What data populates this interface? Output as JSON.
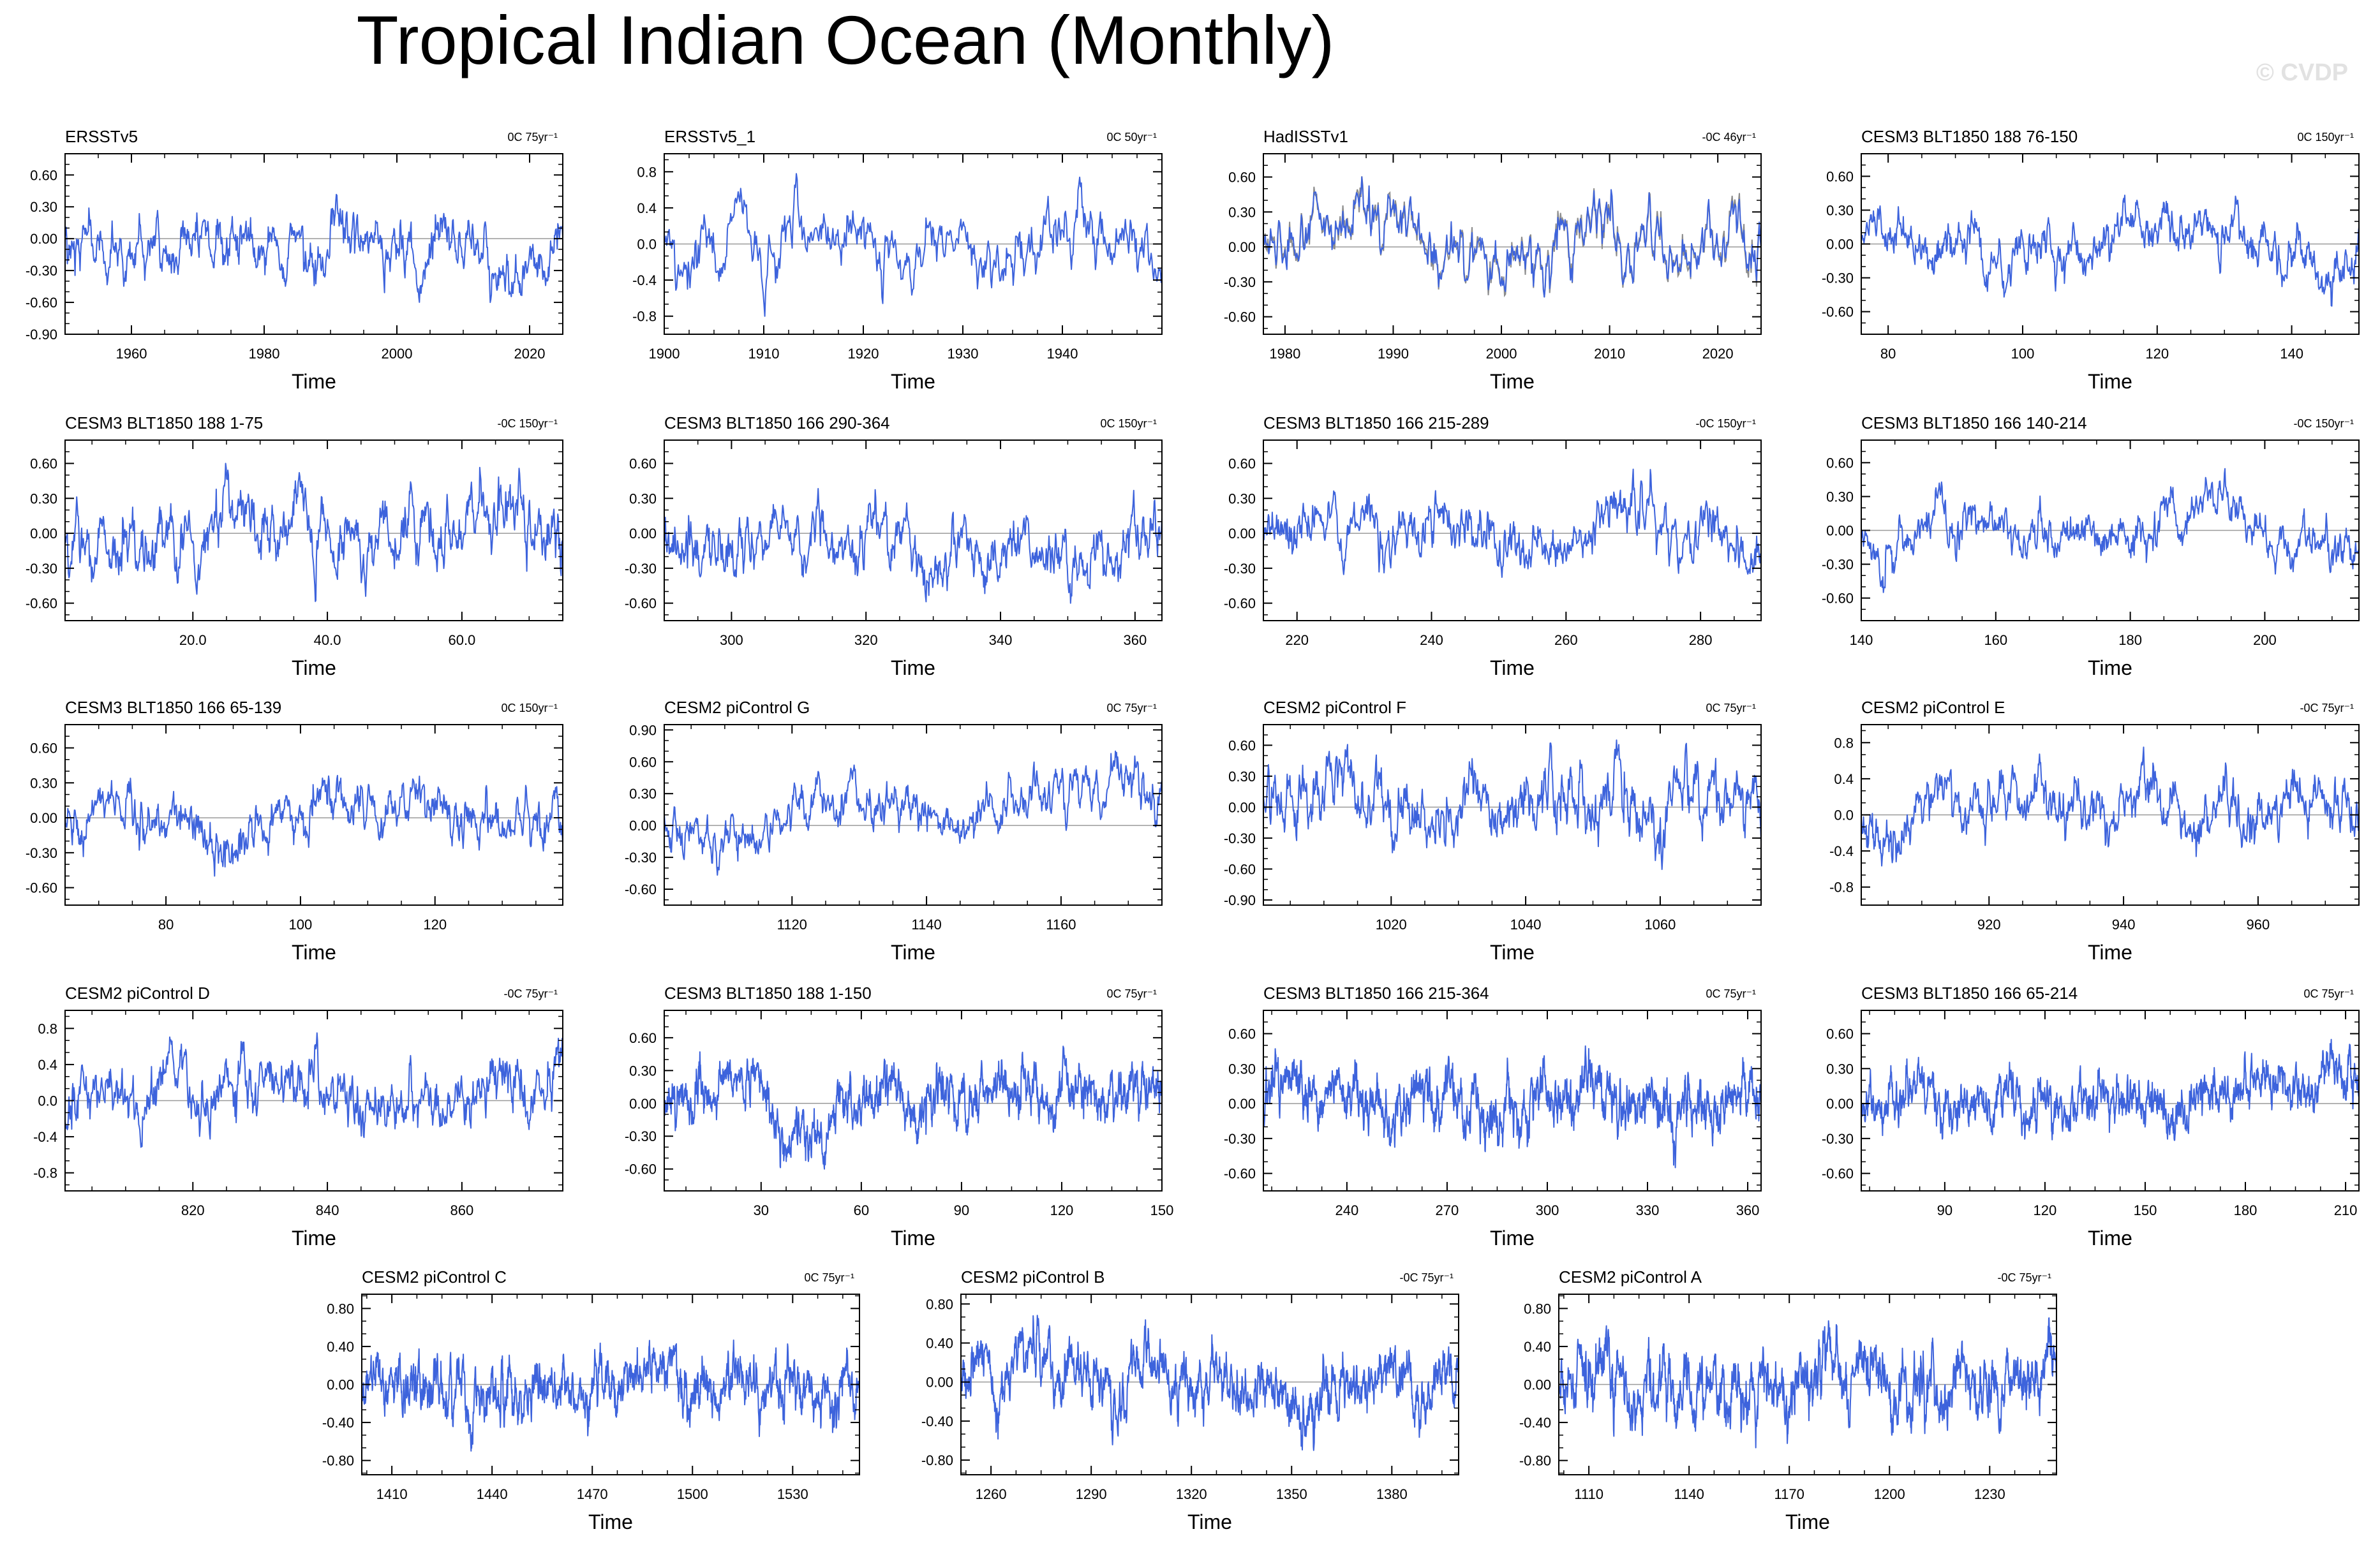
{
  "title": "Tropical Indian Ocean (Monthly)",
  "watermark": "© CVDP",
  "colors": {
    "line": "#3d63dc",
    "line_obs_gray": "#8c8c8c",
    "axis": "#000000",
    "zero": "#9a9a9a"
  },
  "chart_data": [
    {
      "type": "line",
      "title": "ERSSTv5",
      "trend": "0C 75yr⁻¹",
      "xlabel": "Time",
      "xlim": [
        1950,
        2025
      ],
      "ylim": [
        -0.9,
        0.8
      ],
      "yticks": [
        -0.9,
        -0.6,
        -0.3,
        0.0,
        0.3,
        0.6
      ],
      "ytick_labels": [
        "-0.90",
        "-0.60",
        "-0.30",
        "0.00",
        "0.30",
        "0.60"
      ],
      "xticks": [
        1960,
        1980,
        2000,
        2020
      ],
      "xtick_labels": [
        "1960",
        "1980",
        "2000",
        "2020"
      ],
      "amplitude": 0.6,
      "count": 900
    },
    {
      "type": "line",
      "title": "ERSSTv5_1",
      "trend": "0C 50yr⁻¹",
      "xlabel": "Time",
      "xlim": [
        1900,
        1950
      ],
      "ylim": [
        -1.0,
        1.0
      ],
      "yticks": [
        -0.8,
        -0.4,
        0.0,
        0.4,
        0.8
      ],
      "ytick_labels": [
        "-0.8",
        "-0.4",
        "0.0",
        "0.4",
        "0.8"
      ],
      "xticks": [
        1900,
        1910,
        1920,
        1930,
        1940
      ],
      "xtick_labels": [
        "1900",
        "1910",
        "1920",
        "1930",
        "1940"
      ],
      "amplitude": 0.8,
      "count": 600
    },
    {
      "type": "line",
      "title": "HadISSTv1",
      "trend": "-0C 46yr⁻¹",
      "xlabel": "Time",
      "xlim": [
        1978,
        2024
      ],
      "ylim": [
        -0.75,
        0.8
      ],
      "yticks": [
        -0.6,
        -0.3,
        0.0,
        0.3,
        0.6
      ],
      "ytick_labels": [
        "-0.60",
        "-0.30",
        "0.00",
        "0.30",
        "0.60"
      ],
      "xticks": [
        1980,
        1990,
        2000,
        2010,
        2020
      ],
      "xtick_labels": [
        "1980",
        "1990",
        "2000",
        "2010",
        "2020"
      ],
      "amplitude": 0.6,
      "count": 552,
      "has_gray_series": true
    },
    {
      "type": "line",
      "title": "CESM3 BLT1850 188 76-150",
      "trend": "0C 150yr⁻¹",
      "xlabel": "Time",
      "xlim": [
        76,
        150
      ],
      "ylim": [
        -0.8,
        0.8
      ],
      "yticks": [
        -0.6,
        -0.3,
        0.0,
        0.3,
        0.6
      ],
      "ytick_labels": [
        "-0.60",
        "-0.30",
        "0.00",
        "0.30",
        "0.60"
      ],
      "xticks": [
        80,
        100,
        120,
        140
      ],
      "xtick_labels": [
        "80",
        "100",
        "120",
        "140"
      ],
      "amplitude": 0.55,
      "count": 900
    },
    {
      "type": "line",
      "title": "CESM3 BLT1850 188 1-75",
      "trend": "-0C 150yr⁻¹",
      "xlabel": "Time",
      "xlim": [
        1,
        75
      ],
      "ylim": [
        -0.75,
        0.8
      ],
      "yticks": [
        -0.6,
        -0.3,
        0.0,
        0.3,
        0.6
      ],
      "ytick_labels": [
        "-0.60",
        "-0.30",
        "0.00",
        "0.30",
        "0.60"
      ],
      "xticks": [
        20,
        40,
        60
      ],
      "xtick_labels": [
        "20.0",
        "40.0",
        "60.0"
      ],
      "amplitude": 0.6,
      "count": 900
    },
    {
      "type": "line",
      "title": "CESM3 BLT1850 166 290-364",
      "trend": "0C 150yr⁻¹",
      "xlabel": "Time",
      "xlim": [
        290,
        364
      ],
      "ylim": [
        -0.75,
        0.8
      ],
      "yticks": [
        -0.6,
        -0.3,
        0.0,
        0.3,
        0.6
      ],
      "ytick_labels": [
        "-0.60",
        "-0.30",
        "0.00",
        "0.30",
        "0.60"
      ],
      "xticks": [
        300,
        320,
        340,
        360
      ],
      "xtick_labels": [
        "300",
        "320",
        "340",
        "360"
      ],
      "amplitude": 0.6,
      "count": 900
    },
    {
      "type": "line",
      "title": "CESM3 BLT1850 166 215-289",
      "trend": "-0C 150yr⁻¹",
      "xlabel": "Time",
      "xlim": [
        215,
        289
      ],
      "ylim": [
        -0.75,
        0.8
      ],
      "yticks": [
        -0.6,
        -0.3,
        0.0,
        0.3,
        0.6
      ],
      "ytick_labels": [
        "-0.60",
        "-0.30",
        "0.00",
        "0.30",
        "0.60"
      ],
      "xticks": [
        220,
        240,
        260,
        280
      ],
      "xtick_labels": [
        "220",
        "240",
        "260",
        "280"
      ],
      "amplitude": 0.55,
      "count": 900
    },
    {
      "type": "line",
      "title": "CESM3 BLT1850 166 140-214",
      "trend": "-0C 150yr⁻¹",
      "xlabel": "Time",
      "xlim": [
        140,
        214
      ],
      "ylim": [
        -0.8,
        0.8
      ],
      "yticks": [
        -0.6,
        -0.3,
        0.0,
        0.3,
        0.6
      ],
      "ytick_labels": [
        "-0.60",
        "-0.30",
        "0.00",
        "0.30",
        "0.60"
      ],
      "xticks": [
        140,
        160,
        180,
        200
      ],
      "xtick_labels": [
        "140",
        "160",
        "180",
        "200"
      ],
      "amplitude": 0.55,
      "count": 900
    },
    {
      "type": "line",
      "title": "CESM3 BLT1850 166 65-139",
      "trend": "0C 150yr⁻¹",
      "xlabel": "Time",
      "xlim": [
        65,
        139
      ],
      "ylim": [
        -0.75,
        0.8
      ],
      "yticks": [
        -0.6,
        -0.3,
        0.0,
        0.3,
        0.6
      ],
      "ytick_labels": [
        "-0.60",
        "-0.30",
        "0.00",
        "0.30",
        "0.60"
      ],
      "xticks": [
        80,
        100,
        120
      ],
      "xtick_labels": [
        "80",
        "100",
        "120"
      ],
      "amplitude": 0.5,
      "count": 900
    },
    {
      "type": "line",
      "title": "CESM2 piControl G",
      "trend": "0C 75yr⁻¹",
      "xlabel": "Time",
      "xlim": [
        1101,
        1175
      ],
      "ylim": [
        -0.75,
        0.95
      ],
      "yticks": [
        -0.6,
        -0.3,
        0.0,
        0.3,
        0.6,
        0.9
      ],
      "ytick_labels": [
        "-0.60",
        "-0.30",
        "0.00",
        "0.30",
        "0.60",
        "0.90"
      ],
      "xticks": [
        1120,
        1140,
        1160
      ],
      "xtick_labels": [
        "1120",
        "1140",
        "1160"
      ],
      "amplitude": 0.7,
      "count": 900
    },
    {
      "type": "line",
      "title": "CESM2 piControl F",
      "trend": "0C 75yr⁻¹",
      "xlabel": "Time",
      "xlim": [
        1001,
        1075
      ],
      "ylim": [
        -0.95,
        0.8
      ],
      "yticks": [
        -0.9,
        -0.6,
        -0.3,
        0.0,
        0.3,
        0.6
      ],
      "ytick_labels": [
        "-0.90",
        "-0.60",
        "-0.30",
        "0.00",
        "0.30",
        "0.60"
      ],
      "xticks": [
        1020,
        1040,
        1060
      ],
      "xtick_labels": [
        "1020",
        "1040",
        "1060"
      ],
      "amplitude": 0.65,
      "count": 900
    },
    {
      "type": "line",
      "title": "CESM2 piControl E",
      "trend": "-0C 75yr⁻¹",
      "xlabel": "Time",
      "xlim": [
        901,
        975
      ],
      "ylim": [
        -1.0,
        1.0
      ],
      "yticks": [
        -0.8,
        -0.4,
        0.0,
        0.4,
        0.8
      ],
      "ytick_labels": [
        "-0.8",
        "-0.4",
        "0.0",
        "0.4",
        "0.8"
      ],
      "xticks": [
        920,
        940,
        960
      ],
      "xtick_labels": [
        "920",
        "940",
        "960"
      ],
      "amplitude": 0.75,
      "count": 900
    },
    {
      "type": "line",
      "title": "CESM2 piControl D",
      "trend": "-0C 75yr⁻¹",
      "xlabel": "Time",
      "xlim": [
        801,
        875
      ],
      "ylim": [
        -1.0,
        1.0
      ],
      "yticks": [
        -0.8,
        -0.4,
        0.0,
        0.4,
        0.8
      ],
      "ytick_labels": [
        "-0.8",
        "-0.4",
        "0.0",
        "0.4",
        "0.8"
      ],
      "xticks": [
        820,
        840,
        860
      ],
      "xtick_labels": [
        "820",
        "840",
        "860"
      ],
      "amplitude": 0.75,
      "count": 900
    },
    {
      "type": "line",
      "title": "CESM3 BLT1850 188 1-150",
      "trend": "0C 75yr⁻¹",
      "xlabel": "Time",
      "xlim": [
        1,
        150
      ],
      "ylim": [
        -0.8,
        0.85
      ],
      "yticks": [
        -0.6,
        -0.3,
        0.0,
        0.3,
        0.6
      ],
      "ytick_labels": [
        "-0.60",
        "-0.30",
        "0.00",
        "0.30",
        "0.60"
      ],
      "xticks": [
        30,
        60,
        90,
        120,
        150
      ],
      "xtick_labels": [
        "30",
        "60",
        "90",
        "120",
        "150"
      ],
      "amplitude": 0.6,
      "count": 1800
    },
    {
      "type": "line",
      "title": "CESM3 BLT1850 166 215-364",
      "trend": "0C 75yr⁻¹",
      "xlabel": "Time",
      "xlim": [
        215,
        364
      ],
      "ylim": [
        -0.75,
        0.8
      ],
      "yticks": [
        -0.6,
        -0.3,
        0.0,
        0.3,
        0.6
      ],
      "ytick_labels": [
        "-0.60",
        "-0.30",
        "0.00",
        "0.30",
        "0.60"
      ],
      "xticks": [
        240,
        270,
        300,
        330,
        360
      ],
      "xtick_labels": [
        "240",
        "270",
        "300",
        "330",
        "360"
      ],
      "amplitude": 0.55,
      "count": 1800
    },
    {
      "type": "line",
      "title": "CESM3 BLT1850 166 65-214",
      "trend": "0C 75yr⁻¹",
      "xlabel": "Time",
      "xlim": [
        65,
        214
      ],
      "ylim": [
        -0.75,
        0.8
      ],
      "yticks": [
        -0.6,
        -0.3,
        0.0,
        0.3,
        0.6
      ],
      "ytick_labels": [
        "-0.60",
        "-0.30",
        "0.00",
        "0.30",
        "0.60"
      ],
      "xticks": [
        90,
        120,
        150,
        180,
        210
      ],
      "xtick_labels": [
        "90",
        "120",
        "150",
        "180",
        "210"
      ],
      "amplitude": 0.55,
      "count": 1800
    },
    {
      "type": "line",
      "title": "CESM2 piControl C",
      "trend": "0C 75yr⁻¹",
      "xlabel": "Time",
      "xlim": [
        1401,
        1550
      ],
      "ylim": [
        -0.95,
        0.95
      ],
      "yticks": [
        -0.8,
        -0.4,
        0.0,
        0.4,
        0.8
      ],
      "ytick_labels": [
        "-0.80",
        "-0.40",
        "0.00",
        "0.40",
        "0.80"
      ],
      "xticks": [
        1410,
        1440,
        1470,
        1500,
        1530
      ],
      "xtick_labels": [
        "1410",
        "1440",
        "1470",
        "1500",
        "1530"
      ],
      "amplitude": 0.7,
      "count": 1800
    },
    {
      "type": "line",
      "title": "CESM2 piControl B",
      "trend": "-0C 75yr⁻¹",
      "xlabel": "Time",
      "xlim": [
        1251,
        1400
      ],
      "ylim": [
        -0.95,
        0.9
      ],
      "yticks": [
        -0.8,
        -0.4,
        0.0,
        0.4,
        0.8
      ],
      "ytick_labels": [
        "-0.80",
        "-0.40",
        "0.00",
        "0.40",
        "0.80"
      ],
      "xticks": [
        1260,
        1290,
        1320,
        1350,
        1380
      ],
      "xtick_labels": [
        "1260",
        "1290",
        "1320",
        "1350",
        "1380"
      ],
      "amplitude": 0.7,
      "count": 1800
    },
    {
      "type": "line",
      "title": "CESM2 piControl A",
      "trend": "-0C 75yr⁻¹",
      "xlabel": "Time",
      "xlim": [
        1101,
        1250
      ],
      "ylim": [
        -0.95,
        0.95
      ],
      "yticks": [
        -0.8,
        -0.4,
        0.0,
        0.4,
        0.8
      ],
      "ytick_labels": [
        "-0.80",
        "-0.40",
        "0.00",
        "0.40",
        "0.80"
      ],
      "xticks": [
        1110,
        1140,
        1170,
        1200,
        1230
      ],
      "xtick_labels": [
        "1110",
        "1140",
        "1170",
        "1200",
        "1230"
      ],
      "amplitude": 0.7,
      "count": 1800
    }
  ]
}
